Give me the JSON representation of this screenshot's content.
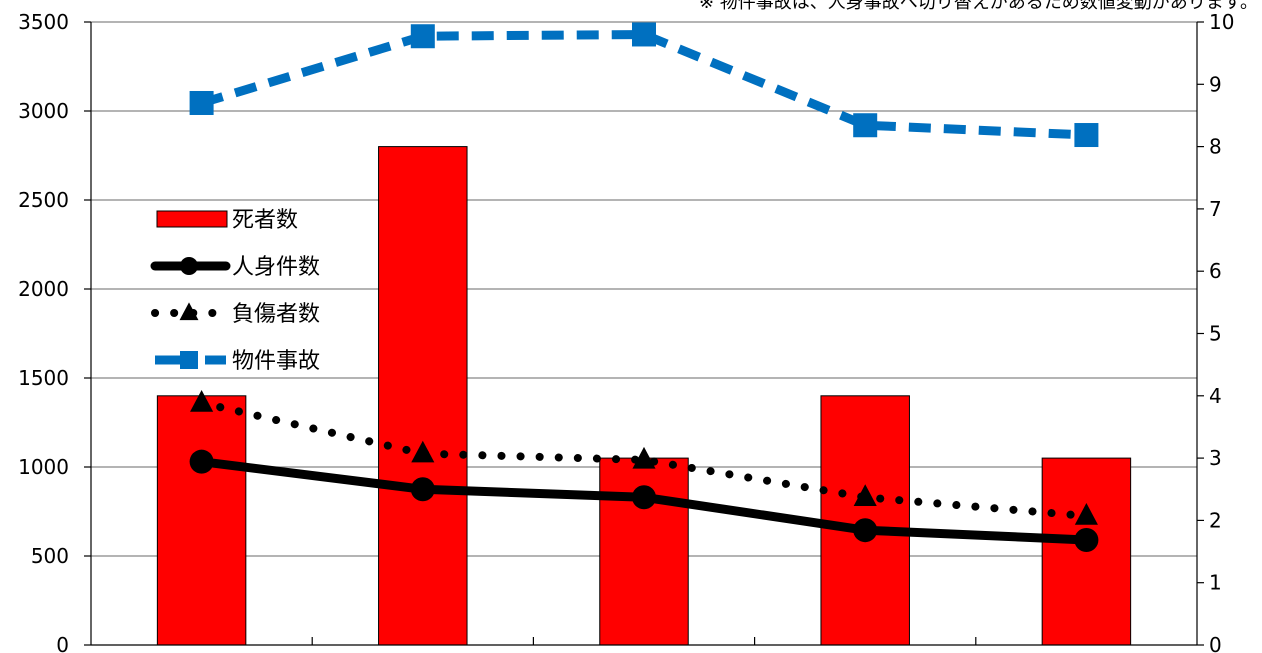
{
  "chart_data": {
    "type": "bar",
    "note": "※ 物件事故は、人身事故へ切り替えがあるため数値変動があります。",
    "categories": [
      "",
      "",
      "",
      "",
      ""
    ],
    "y_left": {
      "min": 0,
      "max": 3500,
      "ticks": [
        0,
        500,
        1000,
        1500,
        2000,
        2500,
        3000,
        3500
      ]
    },
    "y_right": {
      "min": 0,
      "max": 10,
      "ticks": [
        0,
        1,
        2,
        3,
        4,
        5,
        6,
        7,
        8,
        9,
        10
      ]
    },
    "grid": true,
    "legend_position": "left",
    "series": [
      {
        "name": "死者数",
        "type": "bar",
        "axis": "right",
        "color": "#ff0000",
        "values": [
          4,
          8,
          3,
          4,
          3
        ]
      },
      {
        "name": "人身件数",
        "type": "line",
        "axis": "left",
        "color": "#000000",
        "style": "solid",
        "marker": "circle",
        "values": [
          1030,
          875,
          830,
          645,
          590
        ]
      },
      {
        "name": "負傷者数",
        "type": "line",
        "axis": "left",
        "color": "#000000",
        "style": "dotted",
        "marker": "triangle",
        "values": [
          1360,
          1075,
          1040,
          830,
          725
        ]
      },
      {
        "name": "物件事故",
        "type": "line",
        "axis": "left",
        "color": "#0070c0",
        "style": "dashed",
        "marker": "square",
        "values": [
          3045,
          3420,
          3430,
          2920,
          2865
        ]
      }
    ]
  }
}
